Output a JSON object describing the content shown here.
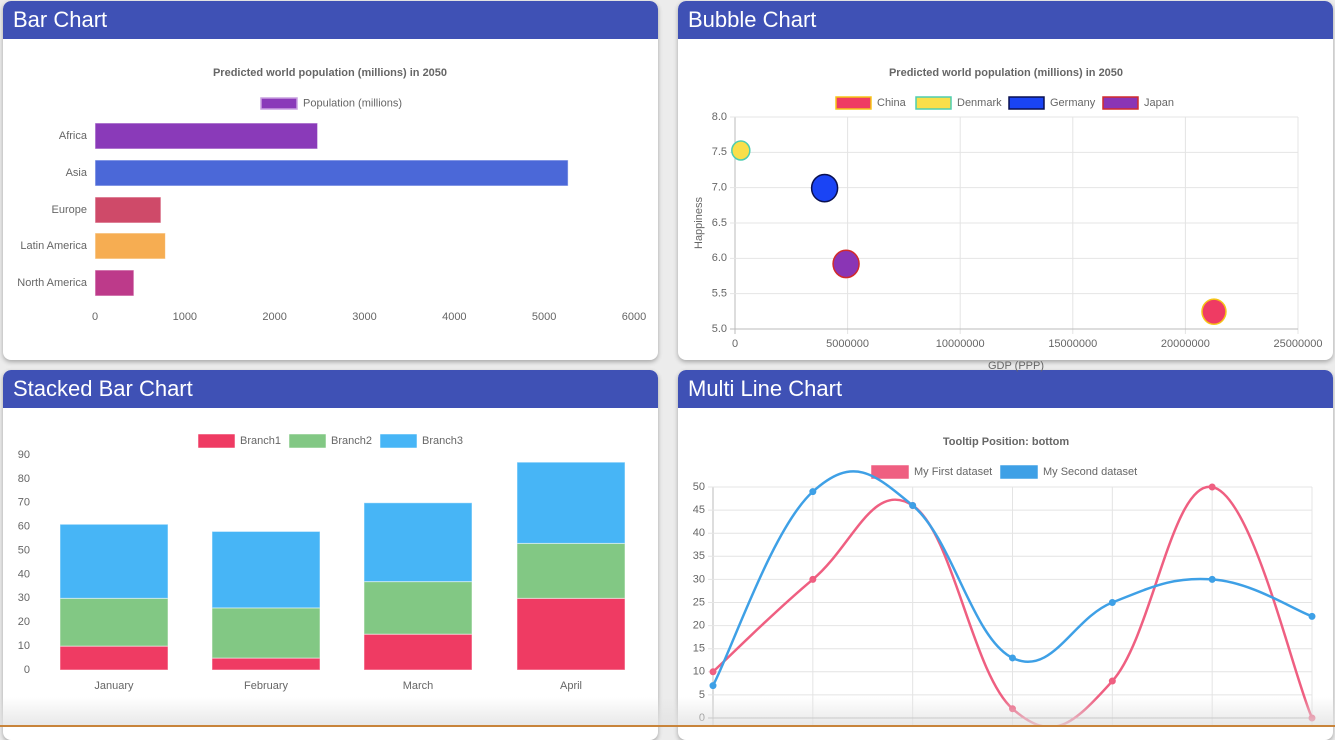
{
  "panels": [
    {
      "title": "Bar Chart"
    },
    {
      "title": "Bubble Chart"
    },
    {
      "title": "Stacked Bar Chart"
    },
    {
      "title": "Multi Line Chart"
    }
  ],
  "chart_data": [
    {
      "type": "bar",
      "orientation": "horizontal",
      "title": "Predicted world population (millions) in 2050",
      "legend_position": "top",
      "categories": [
        "Africa",
        "Asia",
        "Europe",
        "Latin America",
        "North America"
      ],
      "series": [
        {
          "name": "Population (millions)",
          "values": [
            2478,
            5267,
            734,
            784,
            433
          ]
        }
      ],
      "colors": [
        "#8a3ab9",
        "#4b68d8",
        "#cf4a69",
        "#f6ad52",
        "#bd3a8a"
      ],
      "legend_color": "#8a3ab9",
      "xlim": [
        0,
        6000
      ],
      "xticks": [
        "0",
        "1000",
        "2000",
        "3000",
        "4000",
        "5000",
        "6000"
      ],
      "grid": false
    },
    {
      "type": "scatter",
      "subtype": "bubble",
      "title": "Predicted world population (millions) in 2050",
      "xlabel": "GDP (PPP)",
      "ylabel": "Happiness",
      "legend_position": "top",
      "xlim": [
        0,
        25000000
      ],
      "ylim": [
        5.0,
        8.0
      ],
      "xticks": [
        "0",
        "5000000",
        "10000000",
        "15000000",
        "20000000",
        "25000000"
      ],
      "yticks": [
        "5.0",
        "5.5",
        "6.0",
        "6.5",
        "7.0",
        "7.5",
        "8.0"
      ],
      "grid": true,
      "series": [
        {
          "name": "China",
          "x": 21269017,
          "y": 5.245,
          "r": 12,
          "fill": "#ef3b63",
          "stroke": "#f5c518"
        },
        {
          "name": "Denmark",
          "x": 258702,
          "y": 7.526,
          "r": 9,
          "fill": "#f9df4a",
          "stroke": "#4ecdb0"
        },
        {
          "name": "Germany",
          "x": 3979083,
          "y": 6.994,
          "r": 13,
          "fill": "#1a44f5",
          "stroke": "#0a1050"
        },
        {
          "name": "Japan",
          "x": 4931877,
          "y": 5.921,
          "r": 13,
          "fill": "#8a35b5",
          "stroke": "#d22b2b"
        }
      ]
    },
    {
      "type": "bar",
      "stacked": true,
      "legend_position": "top",
      "categories": [
        "January",
        "February",
        "March",
        "April"
      ],
      "ylim": [
        0,
        90
      ],
      "yticks": [
        "0",
        "10",
        "20",
        "30",
        "40",
        "50",
        "60",
        "70",
        "80",
        "90"
      ],
      "grid": false,
      "series": [
        {
          "name": "Branch1",
          "values": [
            10,
            5,
            15,
            30
          ],
          "color": "#ef3b63"
        },
        {
          "name": "Branch2",
          "values": [
            20,
            21,
            22,
            23
          ],
          "color": "#82c884"
        },
        {
          "name": "Branch3",
          "values": [
            31,
            32,
            33,
            34
          ],
          "color": "#47b5f6"
        }
      ]
    },
    {
      "type": "line",
      "title": "Tooltip Position: bottom",
      "legend_position": "top",
      "ylim": [
        0,
        50
      ],
      "yticks": [
        "0",
        "5",
        "10",
        "15",
        "20",
        "25",
        "30",
        "35",
        "40",
        "45",
        "50"
      ],
      "grid": true,
      "series": [
        {
          "name": "My First dataset",
          "values": [
            10,
            30,
            46,
            2,
            8,
            50,
            0
          ],
          "color": "#ef5f81"
        },
        {
          "name": "My Second dataset",
          "values": [
            7,
            49,
            46,
            13,
            25,
            30,
            22
          ],
          "color": "#3ea0e6"
        }
      ]
    }
  ]
}
